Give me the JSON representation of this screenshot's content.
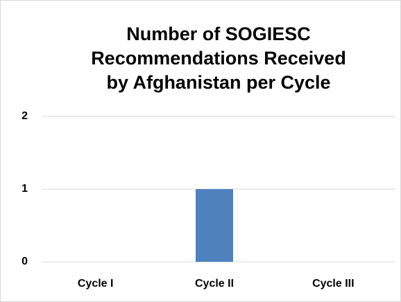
{
  "chart_data": {
    "type": "bar",
    "title": "Number of SOGIESC Recommendations Received by Afghanistan per Cycle",
    "categories": [
      "Cycle I",
      "Cycle II",
      "Cycle III"
    ],
    "values": [
      0,
      1,
      0
    ],
    "color": "#4f81bd",
    "ylim": [
      0,
      2
    ],
    "yticks": [
      0,
      1,
      2
    ],
    "grid": true
  }
}
